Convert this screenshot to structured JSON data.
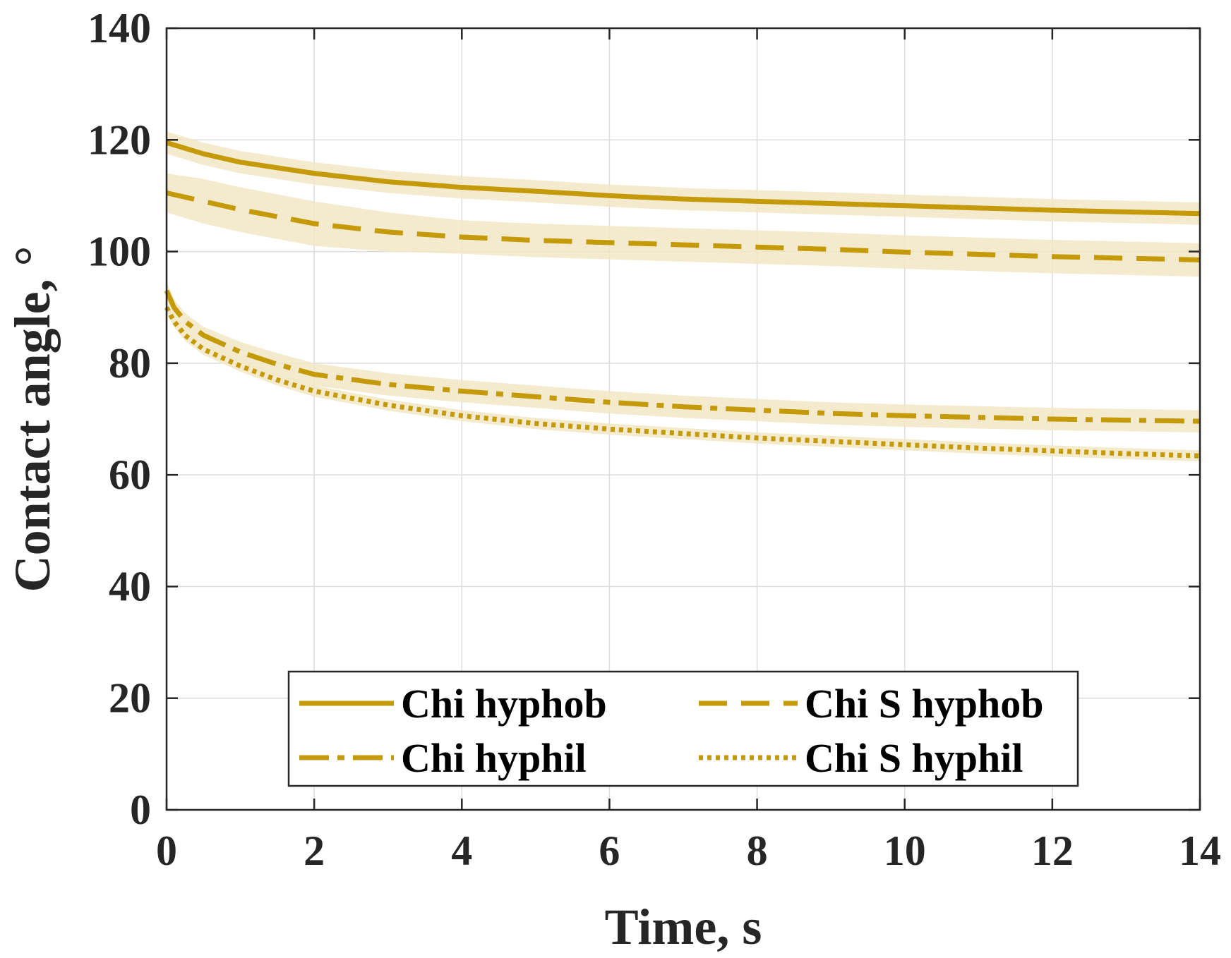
{
  "chart_data": {
    "type": "line",
    "title": "",
    "xlabel": "Time, s",
    "ylabel": "Contact angle, °",
    "xlim": [
      0,
      14
    ],
    "ylim": [
      0,
      140
    ],
    "xticks": [
      0,
      2,
      4,
      6,
      8,
      10,
      12,
      14
    ],
    "yticks": [
      0,
      20,
      40,
      60,
      80,
      100,
      120,
      140
    ],
    "xtick_labels": [
      "0",
      "2",
      "4",
      "6",
      "8",
      "10",
      "12",
      "14"
    ],
    "ytick_labels": [
      "0",
      "20",
      "40",
      "60",
      "80",
      "100",
      "120",
      "140"
    ],
    "grid": true,
    "legend_position": "bottom-center",
    "line_color": "#C59A09",
    "band_color": "#F2E6C4",
    "series": [
      {
        "name": "Chi hyphob",
        "style": "solid",
        "x": [
          0,
          0.5,
          1,
          2,
          3,
          4,
          5,
          6,
          7,
          8,
          9,
          10,
          11,
          12,
          13,
          14
        ],
        "values": [
          119.5,
          117.5,
          116,
          114,
          112.5,
          111.5,
          110.8,
          110,
          109.4,
          109,
          108.6,
          108.2,
          107.8,
          107.4,
          107.1,
          106.8
        ],
        "band": [
          2,
          2,
          2,
          2,
          2,
          2,
          2,
          2,
          2,
          2,
          2,
          2,
          2,
          2,
          2,
          2
        ]
      },
      {
        "name": "Chi S hyphob",
        "style": "dashed",
        "x": [
          0,
          0.5,
          1,
          2,
          3,
          4,
          5,
          6,
          7,
          8,
          9,
          10,
          11,
          12,
          13,
          14
        ],
        "values": [
          110.5,
          109,
          107.5,
          105,
          103.5,
          102.6,
          102,
          101.6,
          101.2,
          100.8,
          100.4,
          99.9,
          99.5,
          99.1,
          98.8,
          98.5
        ],
        "band": [
          3.5,
          4,
          4,
          4,
          3.5,
          3,
          3,
          3,
          3,
          3,
          3,
          3,
          3,
          3,
          3,
          3
        ]
      },
      {
        "name": "Chi hyphil",
        "style": "dashdot",
        "x": [
          0,
          0.1,
          0.25,
          0.5,
          1,
          1.5,
          2,
          3,
          4,
          5,
          6,
          7,
          8,
          9,
          10,
          11,
          12,
          13,
          14
        ],
        "values": [
          93,
          90,
          87.5,
          85,
          82,
          79.8,
          78,
          76.2,
          75,
          74,
          73,
          72.2,
          71.6,
          71,
          70.6,
          70.3,
          70,
          69.8,
          69.6
        ],
        "band": [
          1.5,
          1.5,
          1.5,
          1.5,
          1.8,
          2,
          2,
          2,
          2,
          2,
          2,
          2,
          2,
          2,
          2,
          2,
          2,
          2,
          2
        ]
      },
      {
        "name": "Chi S hyphil",
        "style": "dotted",
        "x": [
          0,
          0.1,
          0.25,
          0.5,
          1,
          1.5,
          2,
          3,
          4,
          5,
          6,
          7,
          8,
          9,
          10,
          11,
          12,
          13,
          14
        ],
        "values": [
          90,
          87.5,
          85,
          82.5,
          79.5,
          77,
          75,
          72.5,
          70.6,
          69.2,
          68.2,
          67.4,
          66.6,
          66,
          65.4,
          64.8,
          64.3,
          63.8,
          63.4
        ],
        "band": [
          1,
          1,
          1,
          1,
          1,
          1,
          1,
          1,
          1,
          1,
          1,
          1,
          1,
          1,
          1,
          1,
          1,
          1,
          1
        ]
      }
    ]
  }
}
